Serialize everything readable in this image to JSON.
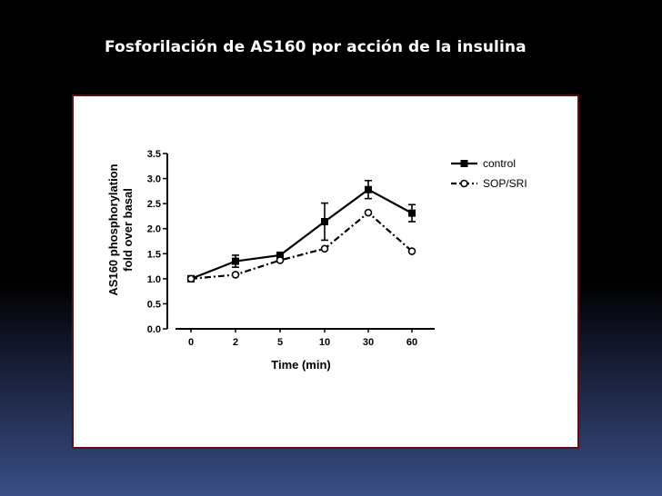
{
  "slide": {
    "title": "Fosforilación de AS160 por acción de la insulina"
  },
  "chart_data": {
    "type": "line",
    "categories": [
      "0",
      "2",
      "5",
      "10",
      "30",
      "60"
    ],
    "xlabel": "Time (min)",
    "ylabel_line1": "AS160 phosphorylation",
    "ylabel_line2": "fold over basal",
    "ylim": [
      0,
      3.5
    ],
    "yticks": [
      "0.0",
      "0.5",
      "1.0",
      "1.5",
      "2.0",
      "2.5",
      "3.0",
      "3.5"
    ],
    "legend_position": "top-right",
    "series": [
      {
        "name": "control",
        "values": [
          1.0,
          1.35,
          1.47,
          2.14,
          2.78,
          2.31
        ],
        "errors": [
          0.0,
          0.12,
          0.05,
          0.37,
          0.18,
          0.17
        ],
        "marker": "filled-square",
        "line_style": "solid"
      },
      {
        "name": "SOP/SRI",
        "values": [
          1.0,
          1.08,
          1.37,
          1.6,
          2.32,
          1.55
        ],
        "errors": [
          0,
          0,
          0,
          0,
          0,
          0
        ],
        "marker": "open-circle",
        "line_style": "dash-dot"
      }
    ]
  }
}
